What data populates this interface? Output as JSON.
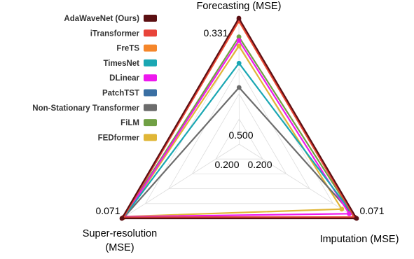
{
  "chart_data": {
    "type": "radar",
    "axes": [
      {
        "key": "forecasting",
        "label_lines": [
          "Forecasting (MSE)"
        ]
      },
      {
        "key": "imputation",
        "label_lines": [
          "Imputation (MSE)"
        ]
      },
      {
        "key": "super_resolution",
        "label_lines": [
          "Super-resolution",
          "(MSE)"
        ]
      }
    ],
    "tick_labels": {
      "forecasting": [
        "0.331",
        "0.500"
      ],
      "imputation": [
        "0.071",
        "0.200"
      ],
      "super_resolution": [
        "0.071",
        "0.200"
      ]
    },
    "scale_note": "inverted axes: lower MSE plotted further from center",
    "series": [
      {
        "name": "AdaWaveNet (Ours)",
        "color": "#5b0f12",
        "values": {
          "forecasting": 0.331,
          "imputation": 0.071,
          "super_resolution": 0.071
        }
      },
      {
        "name": "iTransformer",
        "color": "#e8443a",
        "values": {
          "forecasting": 0.336,
          "imputation": 0.08,
          "super_resolution": 0.078
        }
      },
      {
        "name": "FreTS",
        "color": "#f5862a",
        "values": {
          "forecasting": 0.337,
          "imputation": 0.08,
          "super_resolution": 0.077
        }
      },
      {
        "name": "TimesNet",
        "color": "#1aa7b3",
        "values": {
          "forecasting": 0.42,
          "imputation": 0.076,
          "super_resolution": 0.079
        }
      },
      {
        "name": "DLinear",
        "color": "#ee18ee",
        "values": {
          "forecasting": 0.375,
          "imputation": 0.103,
          "super_resolution": 0.082
        }
      },
      {
        "name": "PatchTST",
        "color": "#3a6fa3",
        "values": {
          "forecasting": 0.335,
          "imputation": 0.077,
          "super_resolution": 0.08
        }
      },
      {
        "name": "Non-Stationary Transformer",
        "color": "#6c6c6c",
        "values": {
          "forecasting": 0.468,
          "imputation": 0.078,
          "super_resolution": 0.082
        }
      },
      {
        "name": "FiLM",
        "color": "#70a044",
        "values": {
          "forecasting": 0.368,
          "imputation": 0.079,
          "super_resolution": 0.078
        }
      },
      {
        "name": "FEDformer",
        "color": "#e0b636",
        "values": {
          "forecasting": 0.386,
          "imputation": 0.135,
          "super_resolution": 0.084
        }
      }
    ]
  }
}
